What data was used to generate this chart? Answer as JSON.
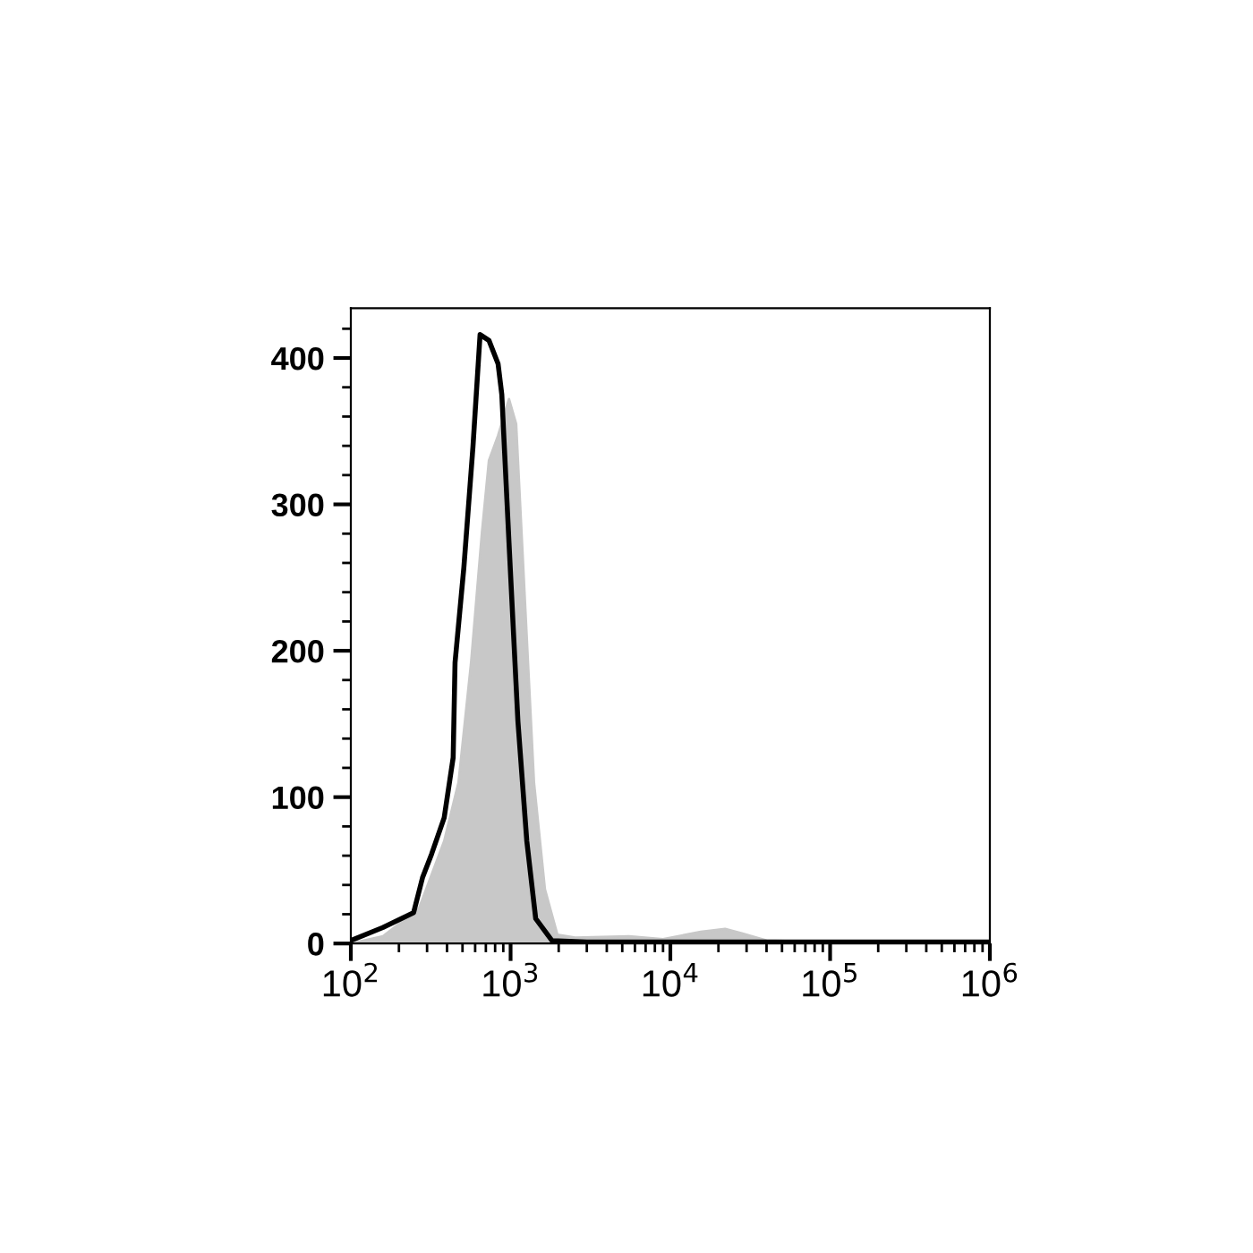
{
  "chart_data": {
    "type": "line",
    "log": "x",
    "xlim": [
      100,
      1000000
    ],
    "ylim": [
      0,
      434
    ],
    "xticks": [
      {
        "value": 100,
        "label": "10$^{2}$"
      },
      {
        "value": 1000,
        "label": "10$^{3}$"
      },
      {
        "value": 10000,
        "label": "10$^{4}$"
      },
      {
        "value": 100000,
        "label": "10$^{5}$"
      },
      {
        "value": 1000000,
        "label": "10$^{6}$"
      }
    ],
    "yticks": [
      0,
      100,
      200,
      300,
      400
    ],
    "grid": false,
    "legend": false,
    "series": [
      {
        "type": "area",
        "color": "#c8c8c8",
        "x": [
          100,
          159,
          267,
          384,
          472,
          566,
          662,
          732,
          835,
          977,
          1083,
          1232,
          1401,
          1640,
          1963,
          2538,
          5516,
          9000,
          15500,
          22000,
          28000,
          40000,
          100000,
          1000000
        ],
        "values": [
          0,
          5,
          24,
          70,
          110,
          192,
          281,
          330,
          347,
          372,
          355,
          232,
          110,
          37,
          6,
          4,
          5,
          3,
          8,
          10,
          7,
          2,
          1,
          0
        ]
      },
      {
        "color": "#000000",
        "x": [
          100,
          159,
          247,
          281,
          320,
          384,
          437,
          449,
          510,
          581,
          644,
          732,
          835,
          881,
          977,
          1111,
          1263,
          1436,
          1814,
          3000,
          10000,
          100000,
          1000000
        ],
        "values": [
          2,
          11,
          21,
          45,
          61,
          86,
          127,
          192,
          257,
          339,
          416,
          412,
          396,
          375,
          274,
          152,
          70,
          17,
          2,
          1,
          1,
          1,
          1
        ]
      }
    ]
  }
}
